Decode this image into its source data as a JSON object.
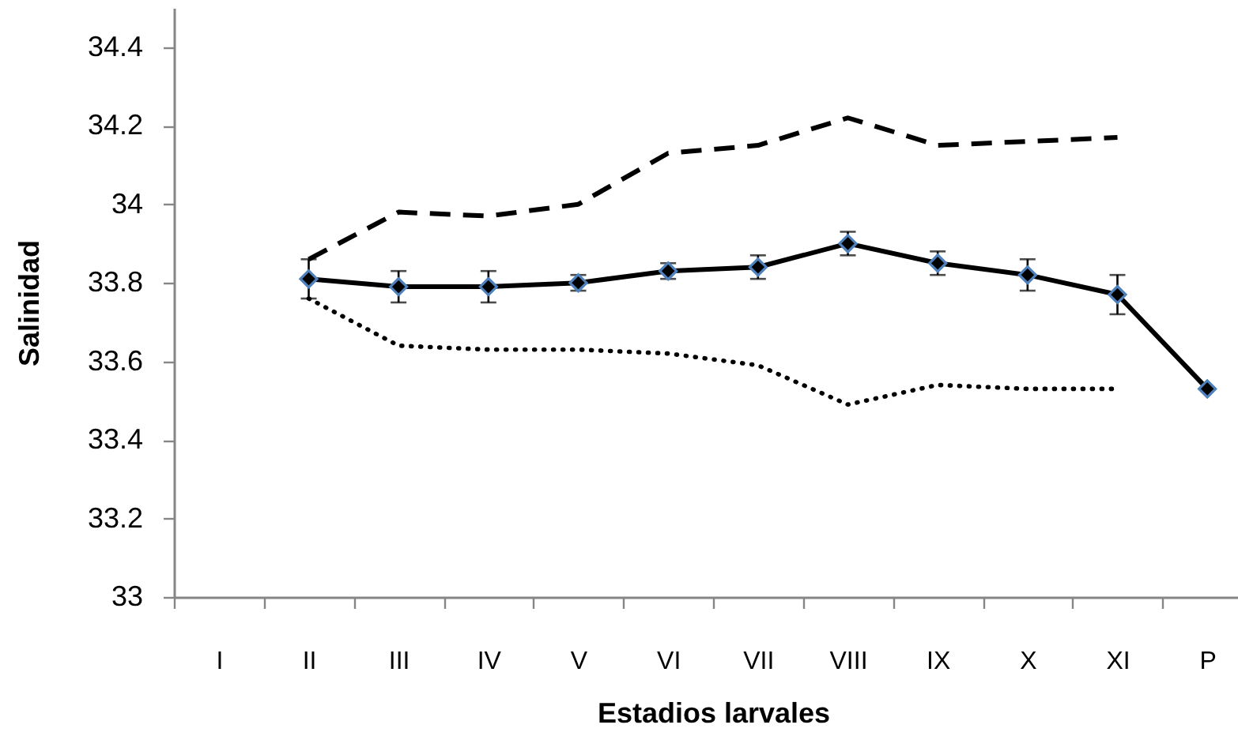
{
  "chart_data": {
    "type": "line",
    "xlabel": "Estadios larvales",
    "ylabel": "Salinidad",
    "categories": [
      "I",
      "II",
      "III",
      "IV",
      "V",
      "VI",
      "VII",
      "VIII",
      "IX",
      "X",
      "XI",
      "P"
    ],
    "ylim": [
      33,
      34.5
    ],
    "yticks": [
      33,
      33.2,
      33.4,
      33.6,
      33.8,
      34,
      34.2,
      34.4
    ],
    "series": [
      {
        "color": "#000000",
        "line_style": "dashed",
        "marker": "none",
        "values": [
          null,
          33.86,
          33.98,
          33.97,
          34.0,
          34.13,
          34.15,
          34.22,
          34.15,
          34.16,
          34.17,
          null
        ]
      },
      {
        "color": "#000000",
        "line_style": "dotted",
        "marker": "none",
        "values": [
          null,
          33.76,
          33.64,
          33.63,
          33.63,
          33.62,
          33.59,
          33.49,
          33.54,
          33.53,
          33.53,
          null
        ]
      },
      {
        "color": "#000000",
        "line_style": "solid",
        "marker": "diamond",
        "values": [
          null,
          33.81,
          33.79,
          33.79,
          33.8,
          33.83,
          33.84,
          33.9,
          33.85,
          33.82,
          33.77,
          33.53
        ],
        "errors": [
          null,
          0.05,
          0.04,
          0.04,
          0.02,
          0.02,
          0.03,
          0.03,
          0.03,
          0.04,
          0.05,
          null
        ]
      }
    ]
  }
}
